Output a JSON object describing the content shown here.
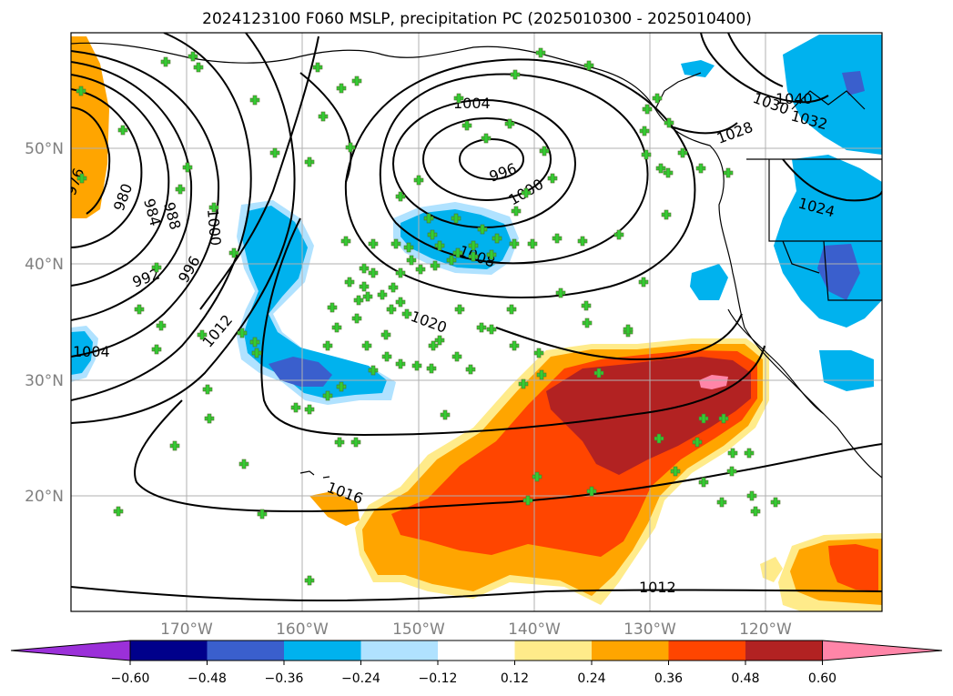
{
  "title": "2024123100 F060 MSLP, precipitation PC (2025010300 - 2025010400)",
  "map": {
    "lat_labels": [
      "50°N",
      "40°N",
      "30°N",
      "20°N"
    ],
    "lon_labels": [
      "170°W",
      "160°W",
      "150°W",
      "140°W",
      "130°W",
      "120°W"
    ]
  },
  "isobar_labels": {
    "l976": "976",
    "l980": "980",
    "l984": "984",
    "l988": "988",
    "l992": "992",
    "l996w": "996",
    "l1000w": "1000",
    "l1004w": "1004",
    "l1012w": "1012",
    "l1004n": "1004",
    "l996n": "996",
    "l1000n": "1000",
    "l1008": "1008",
    "l1020": "1020",
    "l1016": "1016",
    "l1012s": "1012",
    "l1028": "1028",
    "l1030": "1030",
    "l1040": "1040",
    "l1032": "1032",
    "l1024": "1024"
  },
  "colorbar": {
    "ticks": [
      "−0.60",
      "−0.48",
      "−0.36",
      "−0.24",
      "−0.12",
      "0.12",
      "0.24",
      "0.36",
      "0.48",
      "0.60"
    ],
    "colors": [
      "#9b30d9",
      "#00008b",
      "#3a5fcd",
      "#00b2ee",
      "#b0e2ff",
      "#ffffff",
      "#ffeb8a",
      "#ffa500",
      "#ff4500",
      "#b22222",
      "#ff85a8"
    ]
  },
  "legend_colors": {
    "station_marker": "#32cd32",
    "isobar": "#000000"
  }
}
